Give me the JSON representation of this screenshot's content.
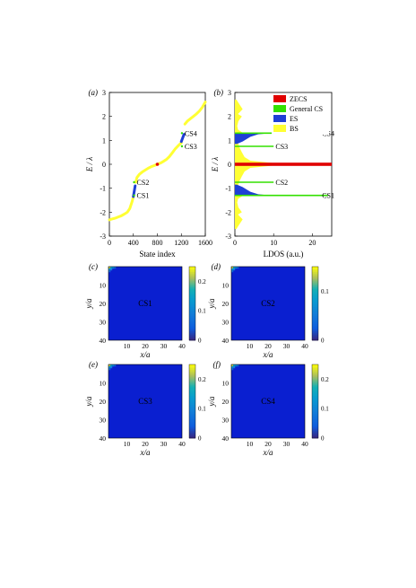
{
  "chart_data": [
    {
      "panel": "(a)",
      "type": "scatter",
      "xlabel": "State index",
      "ylabel": "E / λ",
      "xlim": [
        0,
        1600
      ],
      "ylim": [
        -3,
        3
      ],
      "xticks": [
        "0",
        "400",
        "800",
        "1200",
        "1600"
      ],
      "yticks": [
        "3",
        "2",
        "1",
        "0",
        "-1",
        "-2",
        "-3"
      ],
      "series": [
        {
          "name": "BS",
          "color": "#ffff33",
          "x": [
            0,
            50,
            100,
            150,
            200,
            250,
            300,
            340,
            380,
            400,
            420,
            440,
            460,
            500,
            550,
            600,
            650,
            700,
            740,
            770,
            800,
            830,
            860,
            900,
            950,
            1000,
            1050,
            1100,
            1150,
            1200,
            1220,
            1240,
            1260,
            1300,
            1350,
            1400,
            1450,
            1500,
            1550,
            1600
          ],
          "y": [
            -2.32,
            -2.28,
            -2.25,
            -2.2,
            -2.15,
            -2.08,
            -2.0,
            -1.85,
            -1.55,
            -1.35,
            -0.95,
            -0.75,
            -0.55,
            -0.42,
            -0.32,
            -0.24,
            -0.16,
            -0.1,
            -0.06,
            -0.03,
            0.0,
            0.03,
            0.06,
            0.12,
            0.2,
            0.32,
            0.48,
            0.65,
            0.78,
            0.9,
            1.28,
            1.55,
            1.68,
            1.8,
            1.9,
            2.0,
            2.1,
            2.22,
            2.38,
            2.6
          ]
        },
        {
          "name": "ES",
          "color": "#1f3fd6",
          "x": [
            400,
            410,
            420,
            430,
            1200,
            1215,
            1230,
            1245
          ],
          "y": [
            -1.35,
            -1.2,
            -1.05,
            -0.9,
            0.95,
            1.05,
            1.15,
            1.25
          ]
        },
        {
          "name": "ZECS",
          "color": "#e00000",
          "x": [
            800
          ],
          "y": [
            0.0
          ]
        }
      ],
      "annotations": [
        {
          "text": "CS1",
          "x": 440,
          "y": -1.3
        },
        {
          "text": "CS2",
          "x": 440,
          "y": -0.75
        },
        {
          "text": "CS3",
          "x": 1250,
          "y": 0.75
        },
        {
          "text": "CS4",
          "x": 1250,
          "y": 1.3
        }
      ]
    },
    {
      "panel": "(b)",
      "type": "area",
      "xlabel": "LDOS (a.u.)",
      "ylabel": "E / λ",
      "xlim": [
        0,
        25
      ],
      "ylim": [
        -3,
        3
      ],
      "xticks": [
        "0",
        "10",
        "20"
      ],
      "yticks": [
        "3",
        "2",
        "1",
        "0",
        "-1",
        "-2",
        "-3"
      ],
      "legend": {
        "position": "top-right",
        "entries": [
          {
            "label": "ZECS",
            "color": "#e00000"
          },
          {
            "label": "General CS",
            "color": "#33e000"
          },
          {
            "label": "ES",
            "color": "#1f3fd6"
          },
          {
            "label": "BS",
            "color": "#ffff33"
          }
        ]
      },
      "series": [
        {
          "name": "BS",
          "color": "#ffff33",
          "energy": [
            -2.7,
            -2.5,
            -2.3,
            -2.1,
            -2.0,
            -1.8,
            -1.6,
            -1.45,
            -1.3,
            -1.15,
            -0.9,
            -0.7,
            -0.5,
            -0.3,
            -0.15,
            -0.05,
            0.0,
            0.05,
            0.15,
            0.3,
            0.5,
            0.7,
            0.9,
            1.15,
            1.3,
            1.45,
            1.6,
            1.8,
            2.0,
            2.1,
            2.3,
            2.5,
            2.7
          ],
          "ldos": [
            0.4,
            1.2,
            2.0,
            0.8,
            1.8,
            0.9,
            0.6,
            0.8,
            2.2,
            0.6,
            0.8,
            1.2,
            1.8,
            2.5,
            4.0,
            10,
            14,
            10,
            4.0,
            2.5,
            1.8,
            1.2,
            0.8,
            0.6,
            2.2,
            0.8,
            0.6,
            0.9,
            1.8,
            0.8,
            2.0,
            1.2,
            0.4
          ]
        },
        {
          "name": "ES",
          "color": "#1f3fd6",
          "energy": [
            -1.3,
            -1.25,
            -1.15,
            -1.05,
            -0.95,
            -0.85,
            0.85,
            0.95,
            1.05,
            1.15,
            1.25,
            1.3
          ],
          "ldos": [
            9.0,
            6.0,
            4.0,
            3.0,
            2.0,
            0.5,
            0.5,
            2.0,
            3.0,
            4.0,
            6.0,
            9.0
          ]
        },
        {
          "name": "General CS",
          "color": "#33e000",
          "energy": [
            -1.3,
            -0.75,
            0.75,
            1.3
          ],
          "ldos": [
            24.0,
            10.0,
            10.0,
            24.0
          ]
        },
        {
          "name": "ZECS",
          "color": "#e00000",
          "energy": [
            0.0
          ],
          "ldos": [
            25.0
          ]
        }
      ],
      "annotations": [
        {
          "text": "CS1",
          "energy": -1.3
        },
        {
          "text": "CS2",
          "energy": -0.75
        },
        {
          "text": "CS3",
          "energy": 0.75
        },
        {
          "text": "CS4",
          "energy": 1.3
        }
      ]
    },
    {
      "panel": "(c)",
      "type": "heatmap",
      "label": "CS1",
      "xlabel": "x/a",
      "ylabel": "y/a",
      "xticks": [
        "10",
        "20",
        "30",
        "40"
      ],
      "yticks": [
        "10",
        "20",
        "30",
        "40"
      ],
      "colorbar_ticks": [
        "0.2",
        "0.1",
        "0"
      ],
      "colorbar_max": 0.25
    },
    {
      "panel": "(d)",
      "type": "heatmap",
      "label": "CS2",
      "xlabel": "x/a",
      "ylabel": "y/a",
      "xticks": [
        "10",
        "20",
        "30",
        "40"
      ],
      "yticks": [
        "10",
        "20",
        "30",
        "40"
      ],
      "colorbar_ticks": [
        "0.1",
        "0"
      ],
      "colorbar_max": 0.15
    },
    {
      "panel": "(e)",
      "type": "heatmap",
      "label": "CS3",
      "xlabel": "x/a",
      "ylabel": "y/a",
      "xticks": [
        "10",
        "20",
        "30",
        "40"
      ],
      "yticks": [
        "10",
        "20",
        "30",
        "40"
      ],
      "colorbar_ticks": [
        "0.2",
        "0.1",
        "0"
      ],
      "colorbar_max": 0.25
    },
    {
      "panel": "(f)",
      "type": "heatmap",
      "label": "CS4",
      "xlabel": "x/a",
      "ylabel": "y/a",
      "xticks": [
        "10",
        "20",
        "30",
        "40"
      ],
      "yticks": [
        "10",
        "20",
        "30",
        "40"
      ],
      "colorbar_ticks": [
        "0.2",
        "0.1",
        "0"
      ],
      "colorbar_max": 0.25
    }
  ]
}
